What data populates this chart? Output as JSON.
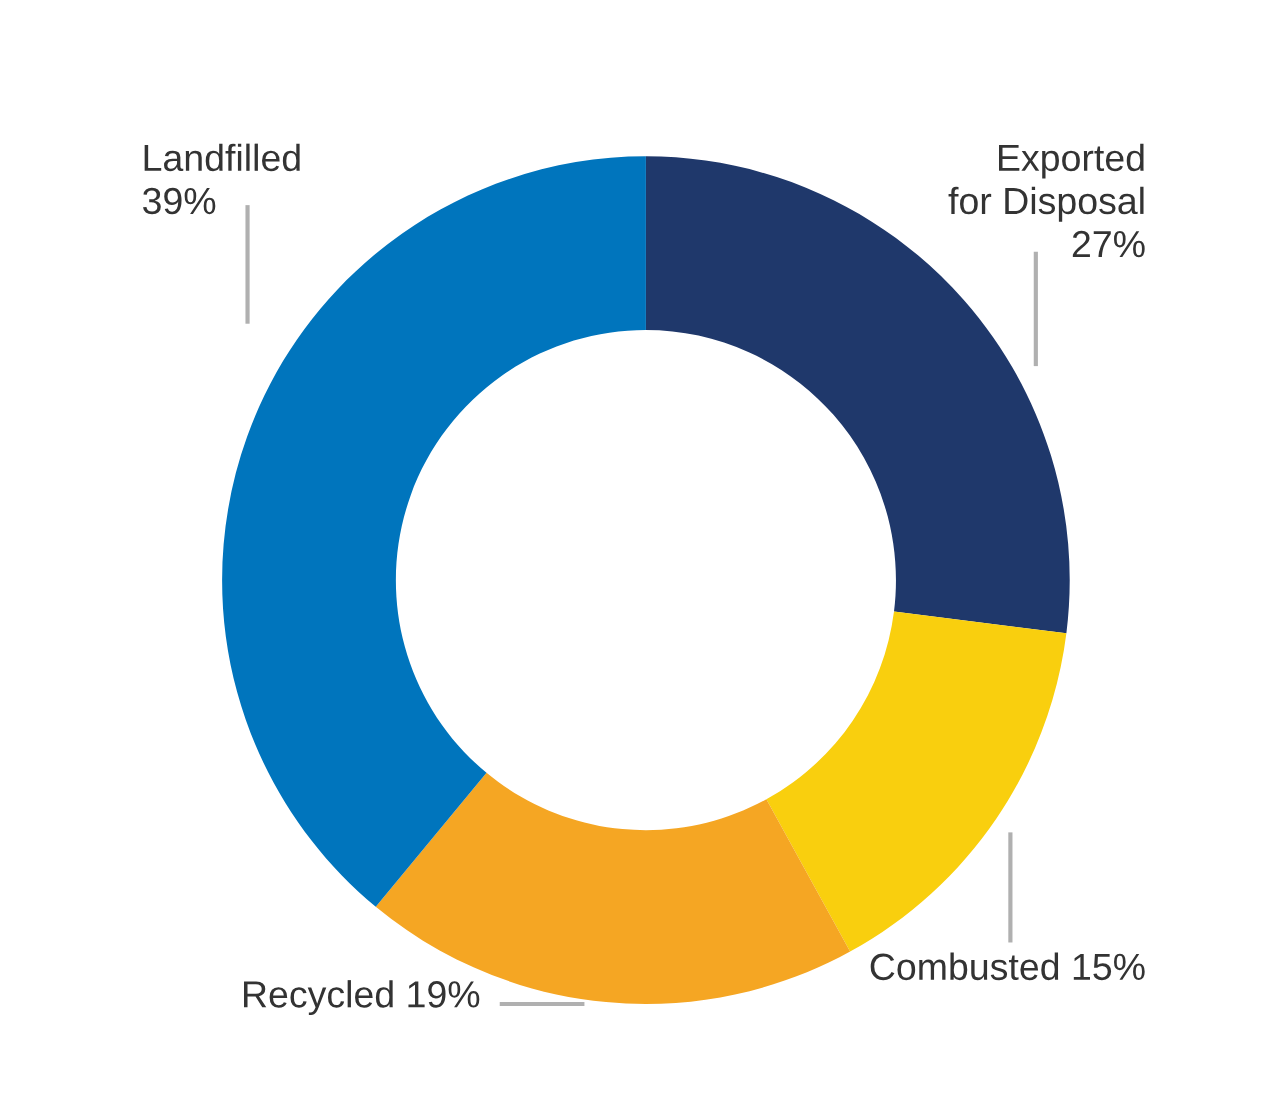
{
  "chart_data": {
    "type": "donut",
    "categories": [
      "Exported\nfor Disposal",
      "Combusted",
      "Recycled",
      "Landfilled"
    ],
    "values": [
      27,
      15,
      19,
      39
    ],
    "value_labels": [
      "27%",
      "15%",
      "19%",
      "39%"
    ],
    "colors": [
      "#1f386b",
      "#f9cf0e",
      "#f5a623",
      "#0075bd"
    ],
    "legend": false
  }
}
